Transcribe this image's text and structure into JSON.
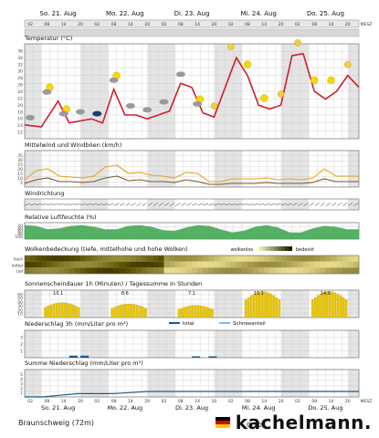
{
  "header": {
    "days": [
      "So. 21. Aug",
      "Mo. 22. Aug",
      "Di. 23. Aug",
      "Mi. 24. Aug",
      "Do. 25. Aug"
    ],
    "hour_ticks": [
      "02",
      "08",
      "14",
      "20",
      "02",
      "08",
      "14",
      "20",
      "02",
      "08",
      "14",
      "20",
      "02",
      "08",
      "14",
      "20",
      "02",
      "08",
      "14",
      "20",
      "MESZ"
    ]
  },
  "panels": {
    "temperature": {
      "title": "Temperatur (°C)",
      "y_ticks": [
        "12",
        "14",
        "16",
        "18",
        "20",
        "22",
        "24",
        "26",
        "28",
        "30",
        "32",
        "34",
        "36"
      ]
    },
    "wind": {
      "title": "Mittelwind und Windböen (km/h)",
      "y_ticks": [
        "5",
        "10",
        "15",
        "20",
        "25",
        "30",
        "35"
      ]
    },
    "winddir": {
      "title": "Windrichtung"
    },
    "humidity": {
      "title": "Relative Luftfeuchte (%)",
      "y_ticks": [
        "100",
        "80",
        "60",
        "40",
        "20"
      ]
    },
    "clouds": {
      "title": "Wolkenbedeckung (tiefe, mittelhohe und hohe Wolken)",
      "legend_left": "wolkenlos",
      "legend_right": "bedeckt",
      "rows": [
        "hoch",
        "mittel",
        "tief"
      ]
    },
    "sunshine": {
      "title": "Sonnenscheindauer 1h (Minuten) / Tagessumme in Stunden",
      "y_ticks": [
        "10",
        "20",
        "30",
        "40",
        "50",
        "60"
      ],
      "daily_sums": [
        "10.1",
        "8.6",
        "7.1",
        "13.1",
        "14.0"
      ]
    },
    "precip3h": {
      "title": "Niederschlag 3h (mm/Liter pro m²)",
      "legend_total": "total",
      "legend_snow": "Schneeanteil",
      "y_ticks": [
        "1",
        "2",
        "3"
      ]
    },
    "precipsum": {
      "title": "Summe Niederschlag (mm/Liter pro m²)",
      "y_ticks": [
        "1",
        "2",
        "3",
        "4",
        "5"
      ]
    }
  },
  "footer": {
    "location": "Braunschweig (72m)",
    "brand_name": "kachelmann.",
    "mini": "Q HD"
  },
  "colors": {
    "temp": "#d11f2b",
    "gust": "#e8a317",
    "mean": "#7a5a2a",
    "humidity": "#3aa34a",
    "sun": "#e8c400",
    "precip": "#1a5a8a",
    "snow": "#7bb8e8"
  },
  "chart_data": [
    {
      "type": "line",
      "title": "Temperatur (°C)",
      "ylim": [
        12,
        36
      ],
      "x_hours_from_start": [
        0,
        6,
        12,
        16,
        20,
        24,
        28,
        32,
        36,
        40,
        44,
        48,
        52,
        56,
        60,
        64,
        68,
        72,
        76,
        80,
        84,
        88,
        92,
        96,
        100,
        104,
        108,
        112,
        116,
        120
      ],
      "series": [
        {
          "values": [
            15.5,
            15,
            21.5,
            16,
            16.5,
            17,
            16,
            24.5,
            18,
            18,
            17,
            18,
            19,
            26,
            25,
            18.5,
            17.5,
            25,
            32.5,
            28,
            20.5,
            19.5,
            20.5,
            33,
            33.5,
            24,
            22,
            24,
            28,
            25
          ]
        }
      ],
      "annotations": [
        "weather symbols: clouds and sun icons above curve"
      ]
    },
    {
      "type": "line",
      "title": "Mittelwind und Windböen (km/h)",
      "ylim": [
        0,
        40
      ],
      "series": [
        {
          "values": [
            8,
            18,
            20,
            12,
            11,
            10,
            12,
            22,
            24,
            15,
            16,
            13,
            12,
            10,
            16,
            15,
            6,
            6,
            9,
            9,
            9,
            10,
            8,
            9,
            8,
            10,
            20,
            12,
            12,
            12
          ]
        },
        {
          "values": [
            4,
            8,
            10,
            6,
            6,
            5,
            6,
            10,
            12,
            7,
            8,
            6,
            6,
            5,
            8,
            6,
            3,
            3,
            4,
            4,
            4,
            5,
            4,
            4,
            4,
            5,
            9,
            6,
            6,
            6
          ]
        }
      ]
    },
    {
      "type": "area",
      "title": "Relative Luftfeuchte (%)",
      "ylim": [
        0,
        100
      ],
      "series": [
        {
          "values": [
            85,
            80,
            60,
            65,
            80,
            85,
            75,
            60,
            60,
            80,
            85,
            75,
            55,
            50,
            70,
            85,
            80,
            60,
            40,
            50,
            75,
            85,
            70,
            40,
            40,
            65,
            80,
            75,
            60,
            60
          ]
        }
      ]
    },
    {
      "type": "heatmap",
      "title": "Wolkenbedeckung (tiefe, mittelhohe und hohe Wolken)",
      "rows": [
        "hoch",
        "mittel",
        "tief"
      ]
    },
    {
      "type": "bar",
      "title": "Sonnenscheindauer 1h (Minuten) / Tagessumme in Stunden",
      "ylim": [
        0,
        60
      ],
      "daily_sums": [
        "10.1",
        "8.6",
        "7.1",
        "13.1",
        "14.0"
      ]
    },
    {
      "type": "bar",
      "title": "Niederschlag 3h (mm/Liter pro m²)",
      "ylim": [
        0,
        4
      ],
      "values_nonzero_hours": [
        16,
        20,
        60,
        66
      ],
      "values": [
        0.3,
        0.3,
        0.2,
        0.2
      ]
    },
    {
      "type": "line",
      "title": "Summe Niederschlag (mm/Liter pro m²)",
      "ylim": [
        0,
        5
      ],
      "series": [
        {
          "values": [
            0,
            0,
            0.3,
            0.6,
            0.6,
            0.6,
            0.8,
            1.0,
            1.0,
            1.0,
            1.0,
            1.0,
            1.0,
            1.0,
            1.0,
            1.0,
            1.0,
            1.0,
            1.0,
            1.0
          ]
        }
      ]
    }
  ]
}
